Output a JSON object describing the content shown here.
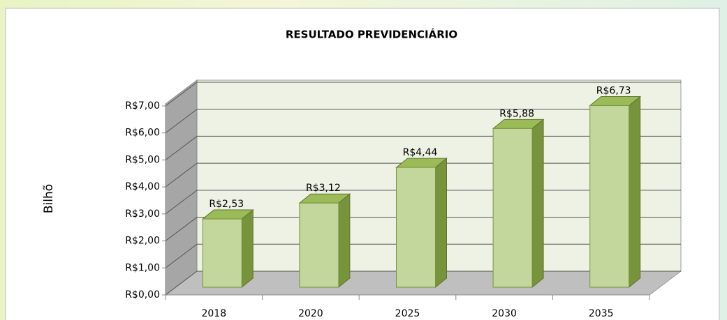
{
  "chart_data": {
    "type": "bar3d",
    "title": "RESULTADO PREVIDENCIÁRIO",
    "y_label": "Bilhõ",
    "categories": [
      "2018",
      "2020",
      "2025",
      "2030",
      "2035"
    ],
    "values": [
      2.53,
      3.12,
      4.44,
      5.88,
      6.73
    ],
    "value_labels": [
      "R$2,53",
      "R$3,12",
      "R$4,44",
      "R$5,88",
      "R$6,73"
    ],
    "color": "#c3d69b",
    "ylim": [
      0,
      7
    ],
    "yticks": [
      {
        "value": 0,
        "label": "R$0,00"
      },
      {
        "value": 1,
        "label": "R$1,00"
      },
      {
        "value": 2,
        "label": "R$2,00"
      },
      {
        "value": 3,
        "label": "R$3,00"
      },
      {
        "value": 4,
        "label": "R$4,00"
      },
      {
        "value": 5,
        "label": "R$5,00"
      },
      {
        "value": 6,
        "label": "R$6,00"
      },
      {
        "value": 7,
        "label": "R$7,00"
      }
    ],
    "grid": true
  }
}
